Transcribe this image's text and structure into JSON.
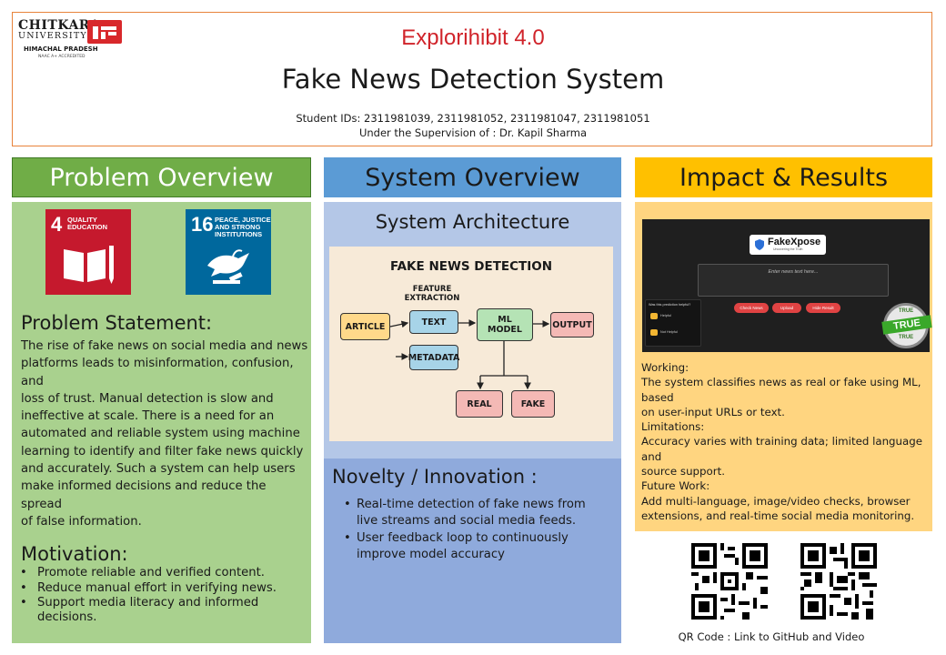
{
  "header": {
    "logo": {
      "brand": "CHITKARA",
      "university": "UNIVERSITY",
      "location": "HIMACHAL PRADESH",
      "accreditation": "NAAC A+ ACCREDITED"
    },
    "event": "Explorihibit 4.0",
    "title": "Fake News Detection System",
    "student_ids": "Student IDs: 2311981039, 2311981052, 2311981047, 2311981051",
    "supervision": "Under the Supervision of : Dr. Kapil Sharma"
  },
  "columns": {
    "problem": {
      "heading": "Problem Overview",
      "sdg4": {
        "number": "4",
        "label_line1": "QUALITY",
        "label_line2": "EDUCATION"
      },
      "sdg16": {
        "number": "16",
        "label_line1": "PEACE, JUSTICE",
        "label_line2": "AND STRONG",
        "label_line3": "INSTITUTIONS"
      },
      "statement_heading": "Problem Statement:",
      "statement_lines": [
        "The rise of fake news on social media and news",
        "platforms leads to misinformation, confusion, and",
        "loss of trust. Manual detection is slow and",
        "ineffective at scale. There is a need for an",
        "automated and reliable system using machine",
        "learning to identify and filter fake news quickly",
        "and accurately. Such a system can help users",
        "make informed decisions and reduce the spread",
        "of false information."
      ],
      "motivation_heading": "Motivation:",
      "motivation_items": [
        "Promote reliable and verified content.",
        "Reduce manual effort in verifying news.",
        "Support media literacy and informed decisions."
      ]
    },
    "system": {
      "heading": "System Overview",
      "arch_heading": "System Architecture",
      "diagram": {
        "title": "FAKE NEWS DETECTION",
        "feature_line1": "FEATURE",
        "feature_line2": "EXTRACTION",
        "article": "ARTICLE",
        "text": "TEXT",
        "metadata": "METADATA",
        "ml_line1": "ML",
        "ml_line2": "MODEL",
        "output": "OUTPUT",
        "real": "REAL",
        "fake": "FAKE"
      },
      "novelty_heading": "Novelty / Innovation :",
      "novelty_items": [
        "Real-time detection of fake news from live streams and social media feeds.",
        "User feedback loop to continuously improve model accuracy"
      ]
    },
    "impact": {
      "heading": "Impact & Results",
      "app": {
        "logo_text": "FakeXpose",
        "logo_sub": "Uncovering the Truth",
        "input_placeholder": "Enter news text here...",
        "buttons": [
          "Check News",
          "Upload",
          "Hide Result"
        ],
        "feedback_title": "Was this prediction helpful?",
        "feedback_yes": "Helpful",
        "feedback_no": "Not Helpful",
        "stamp_top": "TRUE",
        "stamp_mid": "TRUE",
        "stamp_bottom": "TRUE"
      },
      "working_label": "Working:",
      "working_lines": [
        " The system classifies news as real or fake using ML, based",
        "on user-input URLs or text."
      ],
      "limitations_label": "Limitations:",
      "limitations_lines": [
        " Accuracy varies with training data; limited language and",
        "source support."
      ],
      "future_label": "Future Work:",
      "future_lines": [
        " Add multi-language, image/video checks, browser",
        "extensions, and real-time social media monitoring."
      ],
      "qr_caption": "QR Code : Link to GitHub and Video"
    }
  },
  "colors": {
    "header_border": "#e8833a",
    "event_red": "#d0232a",
    "problem_green": "#70ad47",
    "problem_body": "#a9d18e",
    "system_blue": "#5b9bd5",
    "system_body": "#8faadc",
    "impact_yellow": "#ffc000",
    "impact_body": "#ffd580",
    "sdg4_red": "#c5192d",
    "sdg16_blue": "#00689d"
  }
}
